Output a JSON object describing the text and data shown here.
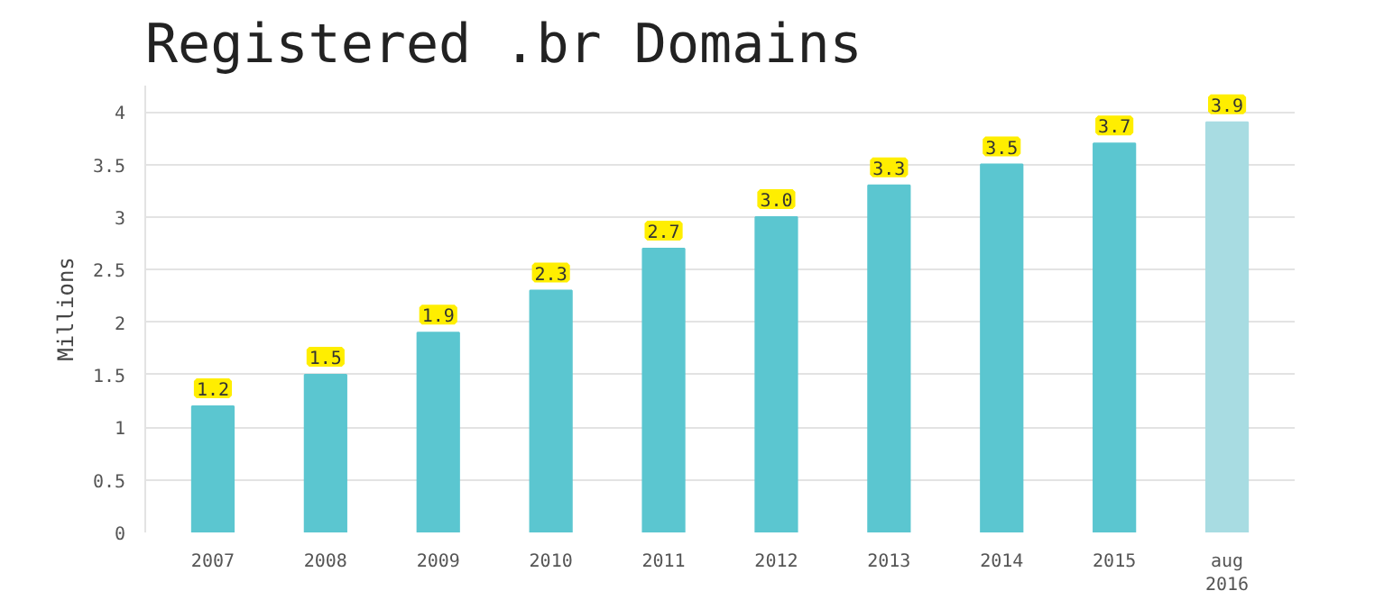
{
  "chart_data": {
    "type": "bar",
    "title": "Registered .br Domains",
    "ylabel": "Millions",
    "categories": [
      "2007",
      "2008",
      "2009",
      "2010",
      "2011",
      "2012",
      "2013",
      "2014",
      "2015",
      "aug\n2016"
    ],
    "values": [
      1.2,
      1.5,
      1.9,
      2.3,
      2.7,
      3.0,
      3.3,
      3.5,
      3.7,
      3.9
    ],
    "colors": [
      "#5bc6d0",
      "#5bc6d0",
      "#5bc6d0",
      "#5bc6d0",
      "#5bc6d0",
      "#5bc6d0",
      "#5bc6d0",
      "#5bc6d0",
      "#5bc6d0",
      "#a8dce2"
    ],
    "value_labels": [
      "1.2",
      "1.5",
      "1.9",
      "2.3",
      "2.7",
      "3.0",
      "3.3",
      "3.5",
      "3.7",
      "3.9"
    ],
    "ylim": [
      0,
      4.25
    ],
    "yticks": [
      0,
      0.5,
      1,
      1.5,
      2,
      2.5,
      3,
      3.5,
      4
    ],
    "grid": "y"
  }
}
